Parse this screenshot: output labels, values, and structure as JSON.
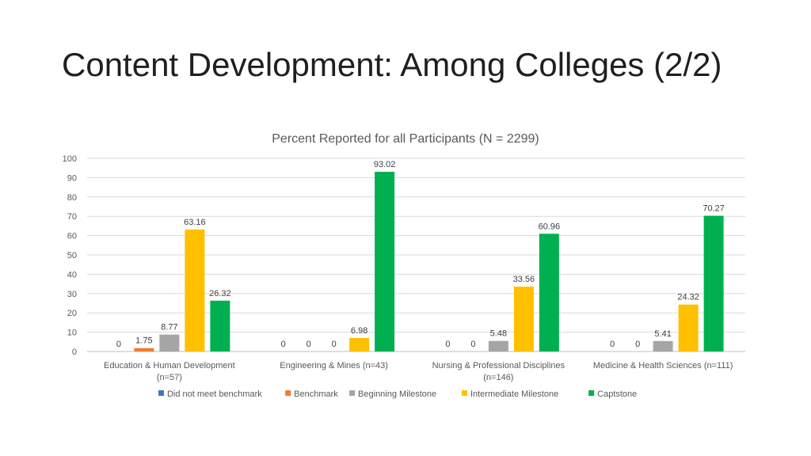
{
  "slide": {
    "title": "Content Development: Among Colleges (2/2)"
  },
  "chart_data": {
    "type": "bar",
    "title": "Percent Reported for all Participants (N = 2299)",
    "xlabel": "",
    "ylabel": "",
    "ylim": [
      0,
      100
    ],
    "yticks": [
      0,
      10,
      20,
      30,
      40,
      50,
      60,
      70,
      80,
      90,
      100
    ],
    "grid": true,
    "legend_position": "bottom",
    "categories": [
      [
        "Education & Human Development",
        "(n=57)"
      ],
      [
        "Engineering & Mines (n=43)"
      ],
      [
        "Nursing & Professional Disciplines",
        "(n=146)"
      ],
      [
        "Medicine & Health Sciences (n=111)"
      ]
    ],
    "series": [
      {
        "name": "Did not meet benchmark",
        "color": "#4472c4",
        "values": [
          0,
          0,
          0,
          0
        ],
        "labels": [
          "0",
          "0",
          "0",
          "0"
        ]
      },
      {
        "name": "Benchmark",
        "color": "#ed7d31",
        "values": [
          1.75,
          0,
          0,
          0
        ],
        "labels": [
          "1.75",
          "0",
          "0",
          "0"
        ]
      },
      {
        "name": "Beginning Milestone",
        "color": "#a5a5a5",
        "values": [
          8.77,
          0,
          5.48,
          5.41
        ],
        "labels": [
          "8.77",
          "0",
          "5.48",
          "5.41"
        ]
      },
      {
        "name": "Intermediate Milestone",
        "color": "#ffc000",
        "values": [
          63.16,
          6.98,
          33.56,
          24.32
        ],
        "labels": [
          "63.16",
          "6.98",
          "33.56",
          "24.32"
        ]
      },
      {
        "name": "Captstone",
        "color": "#00b050",
        "values": [
          26.32,
          93.02,
          60.96,
          70.27
        ],
        "labels": [
          "26.32",
          "93.02",
          "60.96",
          "70.27"
        ]
      }
    ]
  }
}
